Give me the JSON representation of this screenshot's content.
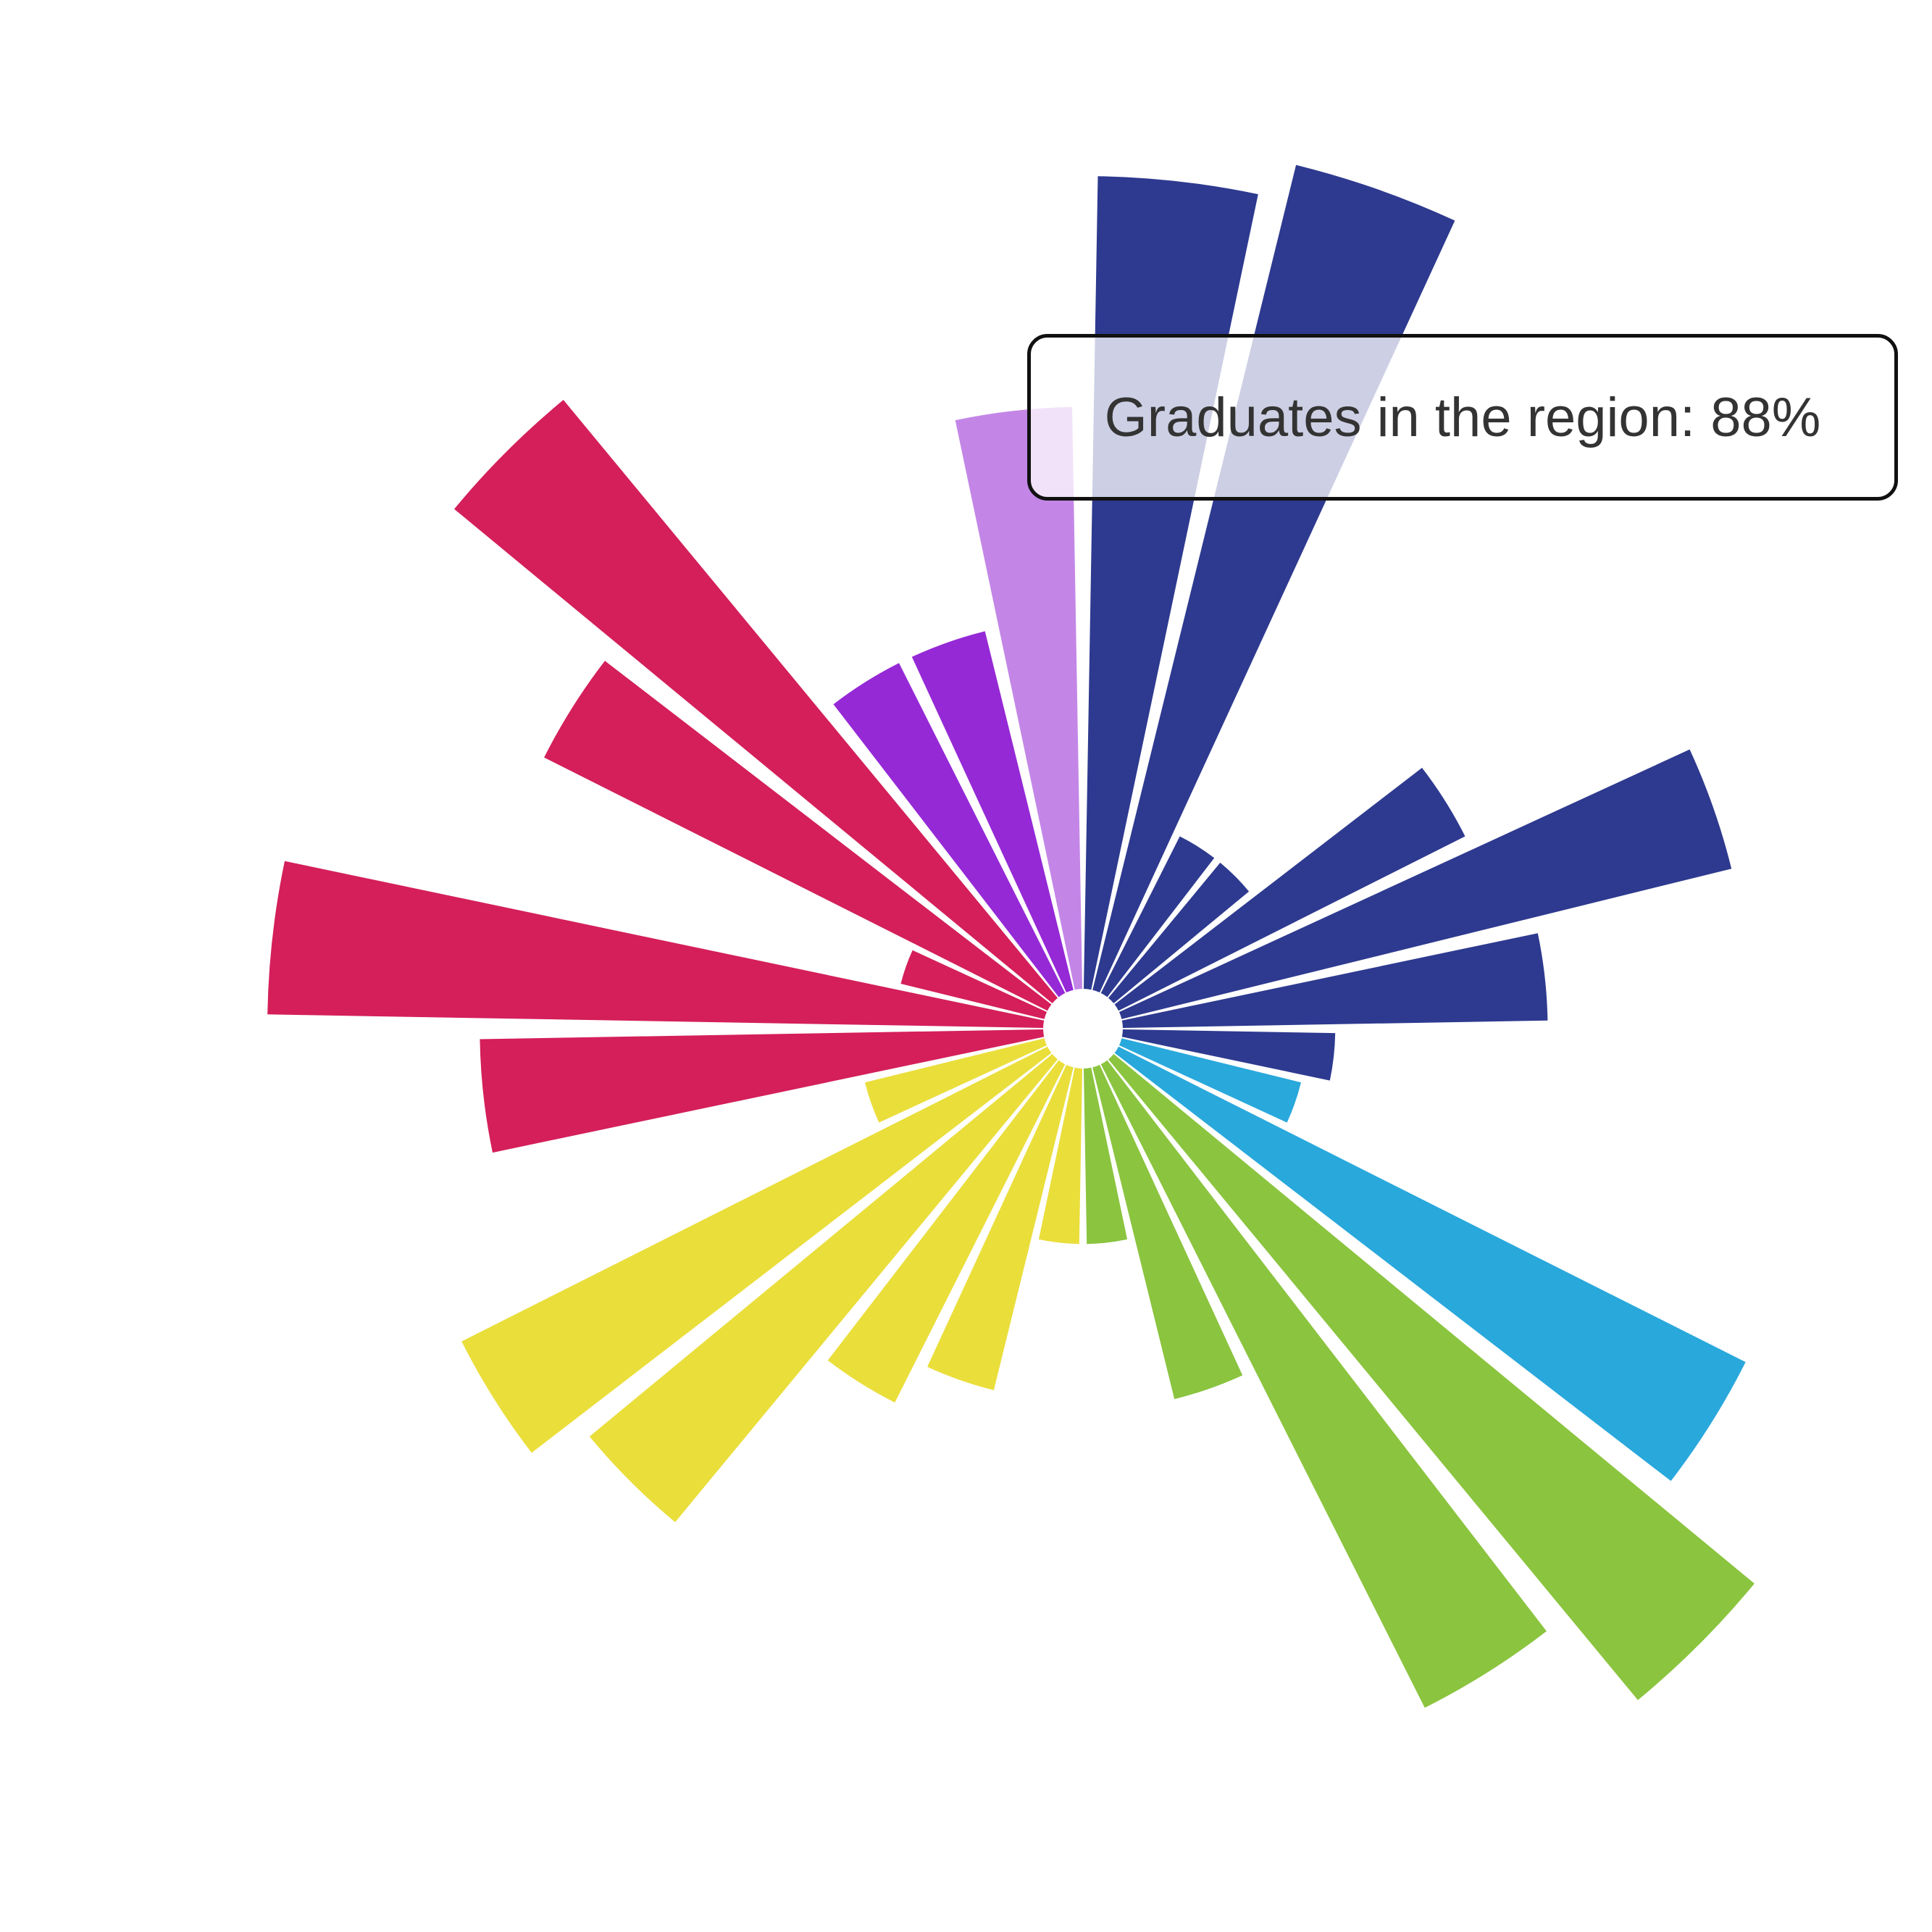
{
  "tooltip": {
    "text": "Graduates in the region: 88%"
  },
  "chart_data": {
    "type": "radial-bar",
    "value_unit": "%",
    "rmax": 100,
    "gap_deg": 2,
    "group_colors": {
      "navy": "#2e3a8f",
      "cyan": "#29a8dc",
      "green": "#8bc43f",
      "yellow": "#eade3b",
      "crimson": "#d41f5a",
      "violet": "#9529d6",
      "lavender": "#c386e6"
    },
    "bars": [
      {
        "group": "navy",
        "value": 88
      },
      {
        "group": "navy",
        "value": 92
      },
      {
        "group": "navy",
        "value": 19
      },
      {
        "group": "navy",
        "value": 19
      },
      {
        "group": "navy",
        "value": 42
      },
      {
        "group": "navy",
        "value": 68
      },
      {
        "group": "navy",
        "value": 46
      },
      {
        "group": "navy",
        "value": 23
      },
      {
        "group": "cyan",
        "value": 20
      },
      {
        "group": "cyan",
        "value": 76
      },
      {
        "group": "green",
        "value": 90
      },
      {
        "group": "green",
        "value": 78
      },
      {
        "group": "green",
        "value": 37
      },
      {
        "group": "green",
        "value": 19
      },
      {
        "group": "yellow",
        "value": 19
      },
      {
        "group": "yellow",
        "value": 36
      },
      {
        "group": "yellow",
        "value": 41
      },
      {
        "group": "yellow",
        "value": 65
      },
      {
        "group": "yellow",
        "value": 71
      },
      {
        "group": "yellow",
        "value": 20
      },
      {
        "group": "crimson",
        "value": 61
      },
      {
        "group": "crimson",
        "value": 84
      },
      {
        "group": "crimson",
        "value": 16
      },
      {
        "group": "crimson",
        "value": 61
      },
      {
        "group": "crimson",
        "value": 84
      },
      {
        "group": "violet",
        "value": 40
      },
      {
        "group": "violet",
        "value": 40
      },
      {
        "group": "lavender",
        "value": 63
      }
    ]
  }
}
